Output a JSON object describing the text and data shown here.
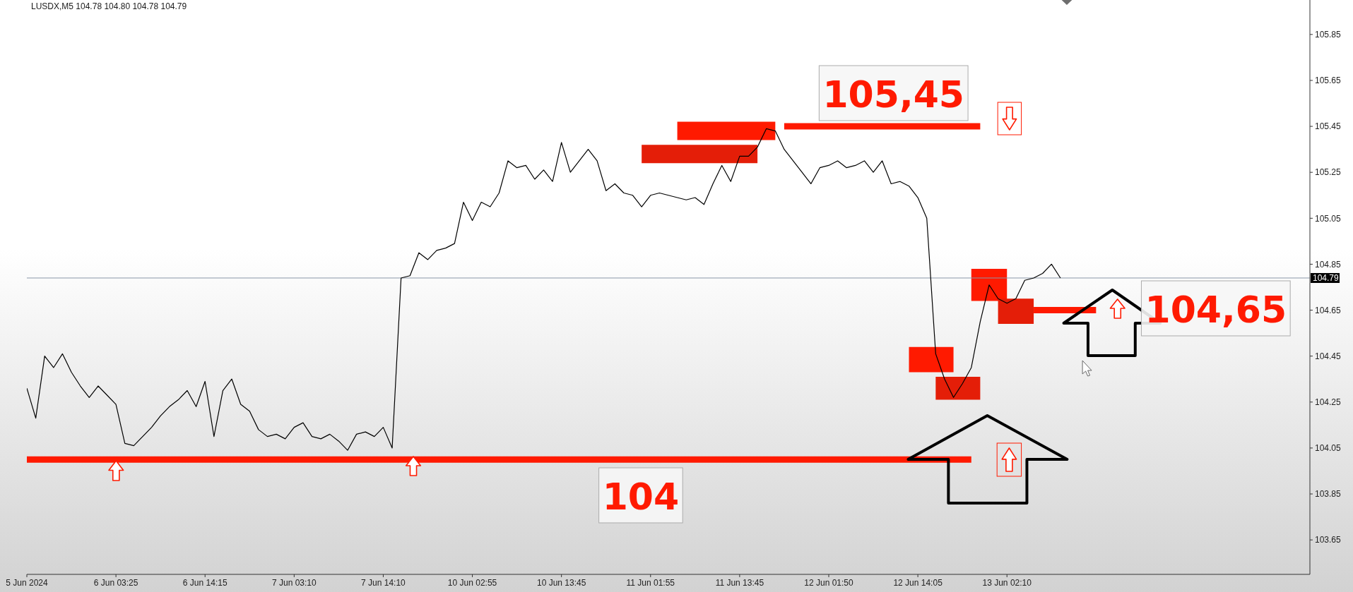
{
  "chart_data": {
    "type": "line",
    "title": "LUSDX,M5 104.78 104.80 104.78 104.79",
    "categories": [
      "5 Jun 2024",
      null,
      null,
      null,
      null,
      null,
      null,
      null,
      null,
      null,
      "6 Jun 03:25",
      null,
      null,
      null,
      null,
      null,
      null,
      null,
      null,
      null,
      "6 Jun 14:15",
      null,
      null,
      null,
      null,
      null,
      null,
      null,
      null,
      null,
      "7 Jun 03:10",
      null,
      null,
      null,
      null,
      null,
      null,
      null,
      null,
      null,
      "7 Jun 14:10",
      null,
      null,
      null,
      null,
      null,
      null,
      null,
      null,
      null,
      "10 Jun 02:55",
      null,
      null,
      null,
      null,
      null,
      null,
      null,
      null,
      null,
      "10 Jun 13:45",
      null,
      null,
      null,
      null,
      null,
      null,
      null,
      null,
      null,
      "11 Jun 01:55",
      null,
      null,
      null,
      null,
      null,
      null,
      null,
      null,
      null,
      "11 Jun 13:45",
      null,
      null,
      null,
      null,
      null,
      null,
      null,
      null,
      null,
      "12 Jun 01:50",
      null,
      null,
      null,
      null,
      null,
      null,
      null,
      null,
      null,
      "12 Jun 14:05",
      null,
      null,
      null,
      null,
      null,
      null,
      null,
      null,
      null,
      "13 Jun 02:10",
      null,
      null,
      null,
      null,
      null,
      null,
      null,
      null,
      null,
      null,
      null,
      null,
      null,
      null,
      null,
      null,
      null,
      null,
      null,
      null,
      null,
      null,
      null,
      null,
      null,
      null,
      null,
      null,
      null,
      null,
      null,
      null,
      null,
      null
    ],
    "ylim": [
      103.5,
      106
    ],
    "yticks": [
      103.65,
      103.85,
      104.05,
      104.25,
      104.45,
      104.65,
      104.85,
      105.05,
      105.25,
      105.45,
      105.65,
      105.85
    ],
    "series": [
      {
        "color": "#000000",
        "values": [
          104.31,
          104.18,
          104.45,
          104.4,
          104.46,
          104.38,
          104.32,
          104.27,
          104.32,
          104.28,
          104.24,
          104.07,
          104.06,
          104.1,
          104.14,
          104.19,
          104.23,
          104.26,
          104.3,
          104.23,
          104.34,
          104.1,
          104.3,
          104.35,
          104.24,
          104.21,
          104.13,
          104.1,
          104.11,
          104.09,
          104.14,
          104.16,
          104.1,
          104.09,
          104.11,
          104.08,
          104.04,
          104.11,
          104.12,
          104.1,
          104.14,
          104.05,
          104.79,
          104.8,
          104.9,
          104.87,
          104.91,
          104.92,
          104.94,
          105.12,
          105.04,
          105.12,
          105.1,
          105.16,
          105.3,
          105.27,
          105.28,
          105.22,
          105.26,
          105.21,
          105.38,
          105.25,
          105.3,
          105.35,
          105.3,
          105.17,
          105.2,
          105.16,
          105.15,
          105.1,
          105.15,
          105.16,
          105.15,
          105.14,
          105.13,
          105.14,
          105.11,
          105.2,
          105.28,
          105.21,
          105.32,
          105.32,
          105.36,
          105.44,
          105.43,
          105.35,
          105.3,
          105.25,
          105.2,
          105.27,
          105.28,
          105.3,
          105.27,
          105.28,
          105.3,
          105.25,
          105.3,
          105.2,
          105.21,
          105.19,
          105.14,
          105.05,
          104.46,
          104.35,
          104.27,
          104.33,
          104.4,
          104.6,
          104.76,
          104.7,
          104.68,
          104.7,
          104.78,
          104.79,
          104.81,
          104.85,
          104.79,
          null,
          null,
          null,
          null,
          null,
          null,
          null,
          null,
          null,
          null,
          null,
          null,
          null,
          null,
          null,
          null,
          null,
          null,
          null,
          null,
          null,
          null,
          null,
          null,
          null,
          null,
          null,
          null
        ]
      },
      {
        "color": "#ff1a00",
        "values": [
          104,
          104,
          104,
          104,
          104,
          104,
          104,
          104,
          104,
          104,
          104,
          104,
          104,
          104,
          104,
          104,
          104,
          104,
          104,
          104,
          104,
          104,
          104,
          104,
          104,
          104,
          104,
          104,
          104,
          104,
          104,
          104,
          104,
          104,
          104,
          104,
          104,
          104,
          104,
          104,
          104,
          104,
          104,
          104,
          104,
          104,
          104,
          104,
          104,
          104,
          104,
          104,
          104,
          104,
          104,
          104,
          104,
          104,
          104,
          104,
          104,
          104,
          104,
          104,
          104,
          104,
          104,
          104,
          104,
          104,
          104,
          104,
          104,
          104,
          104,
          104,
          104,
          104,
          104,
          104,
          104,
          104,
          104,
          104,
          104,
          104,
          104,
          104,
          104,
          104,
          104,
          104,
          104,
          104,
          104,
          104,
          104,
          104,
          104,
          104,
          104,
          104,
          104,
          104,
          104,
          104,
          104,
          null,
          null,
          null,
          null,
          null,
          null,
          null,
          null,
          null,
          null,
          null,
          null,
          null,
          null,
          null,
          null,
          null,
          null,
          null,
          null,
          null,
          null,
          null,
          null,
          null,
          null,
          null,
          null,
          null,
          null,
          null,
          null,
          null,
          null,
          null,
          null,
          null,
          null
        ]
      },
      {
        "color": "#ff1a00",
        "values": [
          null,
          null,
          null,
          null,
          null,
          null,
          null,
          null,
          null,
          null,
          null,
          null,
          null,
          null,
          null,
          null,
          null,
          null,
          null,
          null,
          null,
          null,
          null,
          null,
          null,
          null,
          null,
          null,
          null,
          null,
          null,
          null,
          null,
          null,
          null,
          null,
          null,
          null,
          null,
          null,
          null,
          null,
          null,
          null,
          null,
          null,
          null,
          null,
          null,
          null,
          null,
          null,
          null,
          null,
          null,
          null,
          null,
          null,
          null,
          null,
          null,
          null,
          null,
          null,
          null,
          null,
          null,
          null,
          null,
          null,
          null,
          null,
          null,
          null,
          null,
          null,
          null,
          null,
          null,
          null,
          null,
          null,
          null,
          null,
          null,
          105.45,
          105.45,
          105.45,
          105.45,
          105.45,
          105.45,
          105.45,
          105.45,
          105.45,
          105.45,
          105.45,
          105.45,
          105.45,
          105.45,
          105.45,
          105.45,
          105.45,
          105.45,
          105.45,
          105.45,
          105.45,
          105.45,
          105.45,
          null,
          null,
          null,
          null,
          null,
          104.65,
          104.65,
          104.65,
          104.65,
          104.65,
          104.65,
          104.65,
          104.65,
          null,
          null,
          null,
          null,
          null,
          null,
          null,
          null,
          null,
          null,
          null,
          null,
          null,
          null,
          null,
          null,
          null,
          null,
          null,
          null,
          null,
          null,
          null,
          null
        ]
      },
      {
        "type": "area",
        "color": "#ff1a00",
        "values": [
          null,
          null,
          null,
          null,
          null,
          null,
          null,
          null,
          null,
          null,
          null,
          null,
          null,
          null,
          null,
          null,
          null,
          null,
          null,
          null,
          null,
          null,
          null,
          null,
          null,
          null,
          null,
          null,
          null,
          null,
          null,
          null,
          null,
          null,
          null,
          null,
          null,
          null,
          null,
          null,
          null,
          null,
          null,
          null,
          null,
          null,
          null,
          null,
          null,
          null,
          null,
          null,
          null,
          null,
          null,
          null,
          null,
          null,
          null,
          null,
          null,
          null,
          null,
          null,
          null,
          null,
          null,
          null,
          null,
          null,
          null,
          null,
          null,
          null,
          null,
          null,
          null,
          null,
          null,
          null,
          null,
          null,
          null,
          null,
          null,
          null,
          null,
          null,
          null,
          null,
          null,
          null,
          null,
          null,
          null,
          null,
          null,
          null,
          null,
          null,
          null,
          null,
          null,
          null,
          null,
          null,
          null,
          null,
          null,
          null,
          null,
          null,
          null,
          null,
          null,
          null,
          null,
          null,
          null,
          null,
          null,
          null,
          null,
          null,
          null,
          null,
          null,
          null,
          null,
          null,
          null,
          null,
          null,
          null,
          null,
          null,
          null,
          null,
          null,
          null,
          null,
          null,
          null,
          null,
          null
        ],
        "lower": [
          null,
          null,
          null,
          null,
          null,
          null,
          null,
          null,
          null,
          null,
          null,
          null,
          null,
          null,
          null,
          null,
          null,
          null,
          null,
          null,
          null,
          null,
          null,
          null,
          null,
          null,
          null,
          null,
          null,
          null,
          null,
          null,
          null,
          null,
          null,
          null,
          null,
          null,
          null,
          null,
          null,
          null,
          null,
          null,
          null,
          null,
          null,
          null,
          null,
          null,
          null,
          null,
          null,
          null,
          null,
          null,
          null,
          null,
          null,
          null,
          null,
          null,
          null,
          null,
          null,
          null,
          null,
          null,
          null,
          null,
          null,
          null,
          null,
          105.39,
          105.39,
          105.39,
          105.39,
          105.39,
          105.39,
          105.39,
          105.39,
          105.39,
          105.39,
          105.39,
          105.39,
          null,
          null,
          null,
          null,
          null,
          null,
          null,
          null,
          null,
          null,
          null,
          null,
          null,
          null,
          104.38,
          104.38,
          104.38,
          104.38,
          104.38,
          104.38,
          null,
          104.69,
          104.69,
          104.69,
          104.69,
          104.69,
          null,
          null,
          null,
          null,
          null,
          null,
          null,
          null,
          null,
          null,
          null,
          null,
          null,
          null,
          null,
          null,
          null,
          null,
          null,
          null,
          null,
          null,
          null,
          null,
          null,
          null,
          null,
          null,
          null,
          null,
          null,
          null,
          null,
          null
        ],
        "upper": [
          null,
          null,
          null,
          null,
          null,
          null,
          null,
          null,
          null,
          null,
          null,
          null,
          null,
          null,
          null,
          null,
          null,
          null,
          null,
          null,
          null,
          null,
          null,
          null,
          null,
          null,
          null,
          null,
          null,
          null,
          null,
          null,
          null,
          null,
          null,
          null,
          null,
          null,
          null,
          null,
          null,
          null,
          null,
          null,
          null,
          null,
          null,
          null,
          null,
          null,
          null,
          null,
          null,
          null,
          null,
          null,
          null,
          null,
          null,
          null,
          null,
          null,
          null,
          null,
          null,
          null,
          null,
          null,
          null,
          null,
          null,
          null,
          null,
          105.47,
          105.47,
          105.47,
          105.47,
          105.47,
          105.47,
          105.47,
          105.47,
          105.47,
          105.47,
          105.47,
          105.47,
          null,
          null,
          null,
          null,
          null,
          null,
          null,
          null,
          null,
          null,
          null,
          null,
          null,
          null,
          104.49,
          104.49,
          104.49,
          104.49,
          104.49,
          104.49,
          null,
          104.83,
          104.83,
          104.83,
          104.83,
          104.83,
          null,
          null,
          null,
          null,
          null,
          null,
          null,
          null,
          null,
          null,
          null,
          null,
          null,
          null,
          null,
          null,
          null,
          null,
          null,
          null,
          null,
          null,
          null,
          null,
          null,
          null,
          null,
          null,
          null,
          null,
          null,
          null,
          null,
          null
        ]
      },
      {
        "type": "area",
        "color": "#e41e08",
        "values": [
          null,
          null,
          null,
          null,
          null,
          null,
          null,
          null,
          null,
          null,
          null,
          null,
          null,
          null,
          null,
          null,
          null,
          null,
          null,
          null,
          null,
          null,
          null,
          null,
          null,
          null,
          null,
          null,
          null,
          null,
          null,
          null,
          null,
          null,
          null,
          null,
          null,
          null,
          null,
          null,
          null,
          null,
          null,
          null,
          null,
          null,
          null,
          null,
          null,
          null,
          null,
          null,
          null,
          null,
          null,
          null,
          null,
          null,
          null,
          null,
          null,
          null,
          null,
          null,
          null,
          null,
          null,
          null,
          null,
          null,
          null,
          null,
          null,
          null,
          null,
          null,
          null,
          null,
          null,
          null,
          null,
          null,
          null,
          null,
          null,
          null,
          null,
          null,
          null,
          null,
          null,
          null,
          null,
          null,
          null,
          null,
          null,
          null,
          null,
          null,
          null,
          null,
          null,
          null,
          null,
          null,
          null,
          null,
          null,
          null,
          null,
          null,
          null,
          null,
          null,
          null,
          null,
          null,
          null,
          null,
          null,
          null,
          null,
          null,
          null,
          null,
          null,
          null,
          null,
          null,
          null,
          null,
          null,
          null,
          null,
          null,
          null,
          null,
          null,
          null,
          null,
          null,
          null,
          null,
          null
        ],
        "lower": [
          null,
          null,
          null,
          null,
          null,
          null,
          null,
          null,
          null,
          null,
          null,
          null,
          null,
          null,
          null,
          null,
          null,
          null,
          null,
          null,
          null,
          null,
          null,
          null,
          null,
          null,
          null,
          null,
          null,
          null,
          null,
          null,
          null,
          null,
          null,
          null,
          null,
          null,
          null,
          null,
          null,
          null,
          null,
          null,
          null,
          null,
          null,
          null,
          null,
          null,
          null,
          null,
          null,
          null,
          null,
          null,
          null,
          null,
          null,
          null,
          null,
          null,
          null,
          null,
          null,
          null,
          null,
          null,
          null,
          105.29,
          105.29,
          105.29,
          105.29,
          105.29,
          105.29,
          105.29,
          105.29,
          105.29,
          105.29,
          105.29,
          105.29,
          105.29,
          105.29,
          null,
          null,
          null,
          null,
          null,
          null,
          null,
          null,
          null,
          null,
          null,
          null,
          null,
          null,
          null,
          null,
          null,
          null,
          null,
          104.26,
          104.26,
          104.26,
          104.26,
          104.26,
          104.26,
          null,
          104.59,
          104.59,
          104.59,
          104.59,
          104.59,
          null,
          null,
          null,
          null,
          null,
          null,
          null,
          null,
          null,
          null,
          null,
          null,
          null,
          null,
          null,
          null,
          null,
          null,
          null,
          null,
          null,
          null,
          null,
          null,
          null,
          null,
          null,
          null,
          null,
          null,
          null
        ],
        "upper": [
          null,
          null,
          null,
          null,
          null,
          null,
          null,
          null,
          null,
          null,
          null,
          null,
          null,
          null,
          null,
          null,
          null,
          null,
          null,
          null,
          null,
          null,
          null,
          null,
          null,
          null,
          null,
          null,
          null,
          null,
          null,
          null,
          null,
          null,
          null,
          null,
          null,
          null,
          null,
          null,
          null,
          null,
          null,
          null,
          null,
          null,
          null,
          null,
          null,
          null,
          null,
          null,
          null,
          null,
          null,
          null,
          null,
          null,
          null,
          null,
          null,
          null,
          null,
          null,
          null,
          null,
          null,
          null,
          null,
          105.37,
          105.37,
          105.37,
          105.37,
          105.37,
          105.37,
          105.37,
          105.37,
          105.37,
          105.37,
          105.37,
          105.37,
          105.37,
          105.37,
          null,
          null,
          null,
          null,
          null,
          null,
          null,
          null,
          null,
          null,
          null,
          null,
          null,
          null,
          null,
          null,
          null,
          null,
          null,
          104.36,
          104.36,
          104.36,
          104.36,
          104.36,
          104.36,
          null,
          104.7,
          104.7,
          104.7,
          104.7,
          104.7,
          null,
          null,
          null,
          null,
          null,
          null,
          null,
          null,
          null,
          null,
          null,
          null,
          null,
          null,
          null,
          null,
          null,
          null,
          null,
          null,
          null,
          null,
          null,
          null,
          null,
          null,
          null,
          null,
          null,
          null,
          null
        ]
      }
    ],
    "ref_lines": [
      {
        "axis": "y",
        "value": 104.79,
        "label": "104.79",
        "color": "#8a98a8"
      }
    ],
    "annotations": [
      "105,45",
      "104",
      "104,65"
    ]
  }
}
